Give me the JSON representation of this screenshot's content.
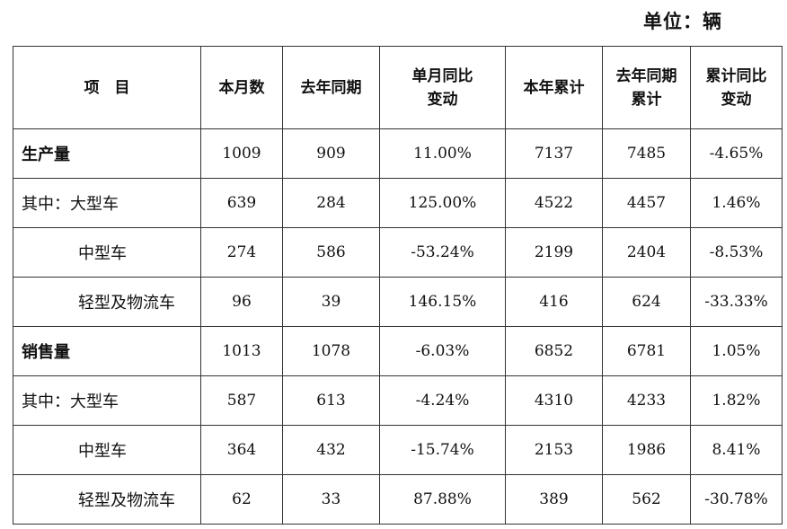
{
  "unit_label": "单位：辆",
  "headers": [
    "项　目",
    "本月数",
    "去年同期",
    "单月同比变动",
    "本年累计",
    "去年同期累计",
    "累计同比变动"
  ],
  "rows": [
    {
      "label": "生产量",
      "kind": "main",
      "values": [
        "1009",
        "909",
        "11.00%",
        "7137",
        "7485",
        "-4.65%"
      ]
    },
    {
      "label": "其中：大型车",
      "kind": "first",
      "values": [
        "639",
        "284",
        "125.00%",
        "4522",
        "4457",
        "1.46%"
      ]
    },
    {
      "label": "中型车",
      "kind": "sub",
      "values": [
        "274",
        "586",
        "-53.24%",
        "2199",
        "2404",
        "-8.53%"
      ]
    },
    {
      "label": "轻型及物流车",
      "kind": "sub",
      "values": [
        "96",
        "39",
        "146.15%",
        "416",
        "624",
        "-33.33%"
      ]
    },
    {
      "label": "销售量",
      "kind": "main",
      "values": [
        "1013",
        "1078",
        "-6.03%",
        "6852",
        "6781",
        "1.05%"
      ]
    },
    {
      "label": "其中：大型车",
      "kind": "first",
      "values": [
        "587",
        "613",
        "-4.24%",
        "4310",
        "4233",
        "1.82%"
      ]
    },
    {
      "label": "中型车",
      "kind": "sub",
      "values": [
        "364",
        "432",
        "-15.74%",
        "2153",
        "1986",
        "8.41%"
      ]
    },
    {
      "label": "轻型及物流车",
      "kind": "sub",
      "values": [
        "62",
        "33",
        "87.88%",
        "389",
        "562",
        "-30.78%"
      ]
    }
  ]
}
